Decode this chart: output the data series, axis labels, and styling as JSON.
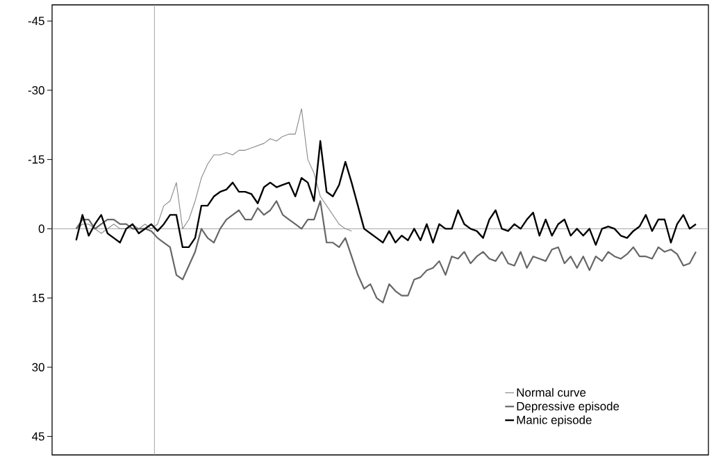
{
  "chart_data": {
    "type": "line",
    "categories": [
      null,
      null,
      null,
      null,
      null,
      null,
      null,
      null,
      null,
      null,
      null,
      null,
      null,
      null,
      null,
      null,
      null,
      null,
      null,
      null,
      null,
      null,
      null,
      null,
      null,
      null,
      null,
      null,
      null,
      null,
      null,
      null,
      null,
      null,
      null,
      null,
      null,
      null,
      null,
      null,
      null,
      null,
      null,
      null,
      null,
      null,
      null,
      null,
      null,
      null,
      null,
      null,
      null,
      null,
      null,
      null,
      null,
      null,
      null,
      null,
      null,
      null,
      null,
      null,
      null,
      null,
      null,
      null,
      null,
      null,
      null,
      null,
      null,
      null,
      null,
      null,
      null,
      null,
      null,
      null,
      null,
      null,
      null,
      null,
      null,
      null,
      null,
      null,
      null,
      null,
      null,
      null,
      null,
      null,
      null,
      null,
      null,
      null,
      null,
      null
    ],
    "series": [
      {
        "name": "Normal curve",
        "color": "#888888",
        "values": [
          0,
          -1,
          -1,
          0,
          1,
          0,
          -1,
          0,
          0,
          -1,
          0,
          -1,
          0,
          -1,
          -5,
          -6,
          -10,
          0,
          -2,
          -6,
          -11,
          -14,
          -16,
          -16,
          -16.5,
          -16,
          -17,
          -17,
          -17.5,
          -18,
          -18.5,
          -19.5,
          -19,
          -20,
          -20.5,
          -20.5,
          -26,
          -15,
          -12,
          -7,
          -5,
          -3,
          -1,
          0,
          0.5,
          null,
          null,
          null,
          null,
          null,
          null,
          null,
          null,
          null,
          null,
          null,
          null,
          null,
          null,
          null,
          null,
          null,
          null,
          null,
          null,
          null,
          null,
          null,
          null,
          null,
          null,
          null,
          null,
          null,
          null,
          null,
          null,
          null,
          null,
          null,
          null,
          null,
          null,
          null,
          null,
          null,
          null,
          null,
          null,
          null,
          null,
          null,
          null,
          null,
          null,
          null,
          null,
          null,
          null,
          null
        ]
      },
      {
        "name": "Depressive episode",
        "color": "#666666",
        "values": [
          0,
          -2,
          -2,
          0,
          -1,
          -2,
          -2,
          -1,
          -1,
          0,
          0,
          0,
          0.5,
          2,
          3,
          4,
          10,
          11,
          8,
          5,
          0,
          2,
          3,
          0,
          -2,
          -3,
          -4,
          -2,
          -2,
          -4.5,
          -3,
          -4,
          -6,
          -3,
          -2,
          -1,
          0,
          -2,
          -2,
          -6,
          3,
          3,
          4,
          2,
          6,
          10,
          13,
          12,
          15,
          16,
          12,
          13.5,
          14.5,
          14.5,
          11,
          10.5,
          9,
          8.5,
          7,
          10,
          6,
          6.5,
          5,
          7.5,
          6,
          5,
          6.5,
          7,
          5,
          7.5,
          8,
          5,
          8.5,
          6,
          6.5,
          7,
          4.5,
          4,
          7.5,
          6,
          8.5,
          6,
          9,
          6,
          7,
          5,
          6,
          6.5,
          5.5,
          4,
          6,
          6,
          6.5,
          4,
          5,
          4.5,
          5.5,
          8,
          7.5,
          5
        ]
      },
      {
        "name": "Manic episode",
        "color": "#000000",
        "values": [
          2.5,
          -3,
          1.5,
          -1,
          -3,
          1,
          2,
          3,
          0,
          -1,
          1,
          0,
          -1,
          0.5,
          -1,
          -3,
          -3,
          4,
          4,
          2,
          -5,
          -5,
          -7,
          -8,
          -8.5,
          -10,
          -8,
          -8,
          -7.5,
          -5.5,
          -9,
          -10,
          -9,
          -9.5,
          -10,
          -7,
          -11,
          -10,
          -6,
          -19,
          -8,
          -7,
          -9.5,
          -14.5,
          -10,
          -5,
          0,
          1,
          2,
          3,
          0.5,
          3,
          1.5,
          2.5,
          0,
          2.5,
          -1,
          3,
          -1,
          0,
          0,
          -4,
          -1,
          0,
          0.5,
          2,
          -2,
          -4,
          0,
          0.5,
          -1,
          0,
          -2,
          -3.5,
          1.5,
          -2,
          1.5,
          -1,
          -2,
          1.5,
          0,
          1.5,
          0,
          3.5,
          0,
          -0.5,
          0,
          1.5,
          2,
          0.5,
          -0.5,
          -3,
          0.5,
          -2,
          -2,
          3,
          -1,
          -3,
          0,
          -1
        ]
      }
    ],
    "ylim": [
      49,
      -48.5
    ],
    "yticks": [
      -45,
      -30,
      -15,
      0,
      15,
      30,
      45
    ],
    "ref_lines": [
      {
        "axis": "y",
        "value": 0,
        "color": "#999999"
      }
    ],
    "tick_labels": "y",
    "legend": "bottom right"
  }
}
